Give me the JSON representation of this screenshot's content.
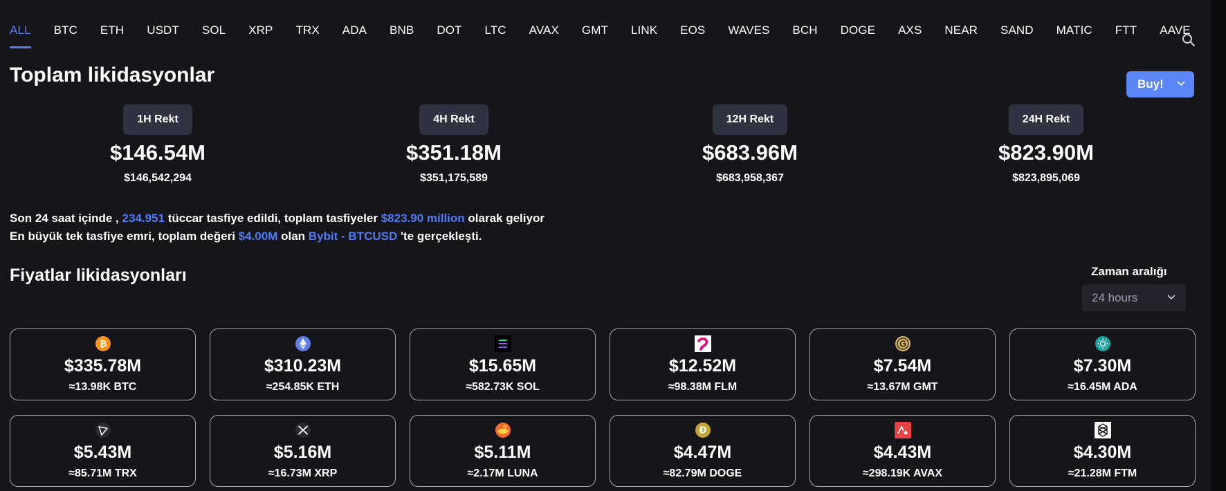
{
  "tabs": [
    "ALL",
    "BTC",
    "ETH",
    "USDT",
    "SOL",
    "XRP",
    "TRX",
    "ADA",
    "BNB",
    "DOT",
    "LTC",
    "AVAX",
    "GMT",
    "LINK",
    "EOS",
    "WAVES",
    "BCH",
    "DOGE",
    "AXS",
    "NEAR",
    "SAND",
    "MATIC",
    "FTT",
    "AAVE"
  ],
  "active_tab": "ALL",
  "header": {
    "title": "Toplam likidasyonlar",
    "buy_label": "Buy!"
  },
  "rekt": [
    {
      "label": "1H Rekt",
      "value": "$146.54M",
      "exact": "$146,542,294"
    },
    {
      "label": "4H Rekt",
      "value": "$351.18M",
      "exact": "$351,175,589"
    },
    {
      "label": "12H Rekt",
      "value": "$683.96M",
      "exact": "$683,958,367"
    },
    {
      "label": "24H Rekt",
      "value": "$823.90M",
      "exact": "$823,895,069"
    }
  ],
  "summary": {
    "line1_a": "Son 24 saat içinde ,",
    "traders": "234.951",
    "line1_b": "tüccar tasfiye edildi, toplam tasfiyeler",
    "total": "$823.90 million",
    "line1_c": "olarak geliyor",
    "line2_a": "En büyük tek tasfiye emri, toplam değeri",
    "largest": "$4.00M",
    "line2_b": "olan",
    "exchange": "Bybit - BTCUSD",
    "line2_c": "'te gerçekleşti."
  },
  "prices": {
    "title": "Fiyatlar likidasyonları",
    "range_label": "Zaman aralığı",
    "range_value": "24 hours"
  },
  "coins": [
    {
      "icon": "btc-icon",
      "amount": "$335.78M",
      "qty": "≈13.98K BTC"
    },
    {
      "icon": "eth-icon",
      "amount": "$310.23M",
      "qty": "≈254.85K ETH"
    },
    {
      "icon": "sol-icon",
      "amount": "$15.65M",
      "qty": "≈582.73K SOL"
    },
    {
      "icon": "flm-icon",
      "amount": "$12.52M",
      "qty": "≈98.38M FLM"
    },
    {
      "icon": "gmt-icon",
      "amount": "$7.54M",
      "qty": "≈13.67M GMT"
    },
    {
      "icon": "ada-icon",
      "amount": "$7.30M",
      "qty": "≈16.45M ADA"
    },
    {
      "icon": "trx-icon",
      "amount": "$5.43M",
      "qty": "≈85.71M TRX"
    },
    {
      "icon": "xrp-icon",
      "amount": "$5.16M",
      "qty": "≈16.73M XRP"
    },
    {
      "icon": "luna-icon",
      "amount": "$5.11M",
      "qty": "≈2.17M LUNA"
    },
    {
      "icon": "doge-icon",
      "amount": "$4.47M",
      "qty": "≈82.79M DOGE"
    },
    {
      "icon": "avax-icon",
      "amount": "$4.43M",
      "qty": "≈298.19K AVAX"
    },
    {
      "icon": "ftm-icon",
      "amount": "$4.30M",
      "qty": "≈21.28M FTM"
    }
  ],
  "colors": {
    "accent": "#5b7ff5",
    "background": "#16161a",
    "card_border": "#a7a9b3",
    "pill": "#2f3240"
  }
}
